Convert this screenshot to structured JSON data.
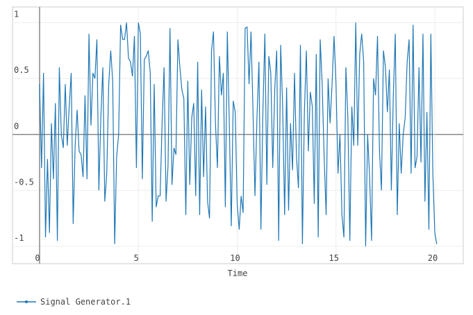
{
  "chart_data": {
    "type": "line",
    "xlabel": "Time",
    "x": [
      0,
      0.1,
      0.2,
      0.3,
      0.4,
      0.5,
      0.6,
      0.7,
      0.8,
      0.9,
      1,
      1.1,
      1.2,
      1.3,
      1.4,
      1.5,
      1.6,
      1.7,
      1.8,
      1.9,
      2,
      2.1,
      2.2,
      2.3,
      2.4,
      2.5,
      2.6,
      2.7,
      2.8,
      2.9,
      3,
      3.1,
      3.2,
      3.3,
      3.4,
      3.5,
      3.6,
      3.7,
      3.8,
      3.9,
      4,
      4.1,
      4.2,
      4.3,
      4.4,
      4.5,
      4.6,
      4.7,
      4.8,
      4.9,
      5,
      5.1,
      5.2,
      5.3,
      5.4,
      5.5,
      5.6,
      5.7,
      5.8,
      5.9,
      6,
      6.1,
      6.2,
      6.3,
      6.4,
      6.5,
      6.6,
      6.7,
      6.8,
      6.9,
      7,
      7.1,
      7.2,
      7.3,
      7.4,
      7.5,
      7.6,
      7.7,
      7.8,
      7.9,
      8,
      8.1,
      8.2,
      8.3,
      8.4,
      8.5,
      8.6,
      8.7,
      8.8,
      8.9,
      9,
      9.1,
      9.2,
      9.3,
      9.4,
      9.5,
      9.6,
      9.7,
      9.8,
      9.9,
      10,
      10.1,
      10.2,
      10.3,
      10.4,
      10.5,
      10.6,
      10.7,
      10.8,
      10.9,
      11,
      11.1,
      11.2,
      11.3,
      11.4,
      11.5,
      11.6,
      11.7,
      11.8,
      11.9,
      12,
      12.1,
      12.2,
      12.3,
      12.4,
      12.5,
      12.6,
      12.7,
      12.8,
      12.9,
      13,
      13.1,
      13.2,
      13.3,
      13.4,
      13.5,
      13.6,
      13.7,
      13.8,
      13.9,
      14,
      14.1,
      14.2,
      14.3,
      14.4,
      14.5,
      14.6,
      14.7,
      14.8,
      14.9,
      15,
      15.1,
      15.2,
      15.3,
      15.4,
      15.5,
      15.6,
      15.7,
      15.8,
      15.9,
      16,
      16.1,
      16.2,
      16.3,
      16.4,
      16.5,
      16.6,
      16.7,
      16.8,
      16.9,
      17,
      17.1,
      17.2,
      17.3,
      17.4,
      17.5,
      17.6,
      17.7,
      17.8,
      17.9,
      18,
      18.1,
      18.2,
      18.3,
      18.4,
      18.5,
      18.6,
      18.7,
      18.8,
      18.9,
      19,
      19.1,
      19.2,
      19.3,
      19.4,
      19.5,
      19.6,
      19.7,
      19.8,
      19.9,
      20,
      20.1
    ],
    "series": [
      {
        "name": "Signal Generator.1",
        "color": "#1f77b4",
        "values": [
          0.45,
          -0.3,
          0.55,
          -0.92,
          -0.22,
          -0.88,
          0.1,
          -0.4,
          0.28,
          -0.95,
          0.6,
          0.0,
          -0.12,
          0.45,
          -0.1,
          0.25,
          0.55,
          -0.8,
          -0.1,
          0.22,
          -0.15,
          -0.18,
          -0.38,
          0.35,
          -0.4,
          0.9,
          0.08,
          0.55,
          0.5,
          0.85,
          -0.5,
          0.15,
          0.6,
          -0.6,
          -0.35,
          0.45,
          0.75,
          0.48,
          -0.98,
          -0.2,
          0.0,
          0.98,
          0.85,
          0.85,
          1.0,
          0.68,
          0.65,
          0.52,
          0.88,
          -0.3,
          1.0,
          0.9,
          -0.4,
          0.67,
          0.7,
          0.75,
          0.55,
          -0.78,
          0.45,
          -0.65,
          -0.55,
          -0.55,
          0.1,
          0.6,
          -0.6,
          -0.28,
          0.95,
          -0.45,
          -0.12,
          -0.18,
          0.85,
          0.6,
          0.4,
          0.32,
          -0.72,
          0.48,
          -0.45,
          0.15,
          0.28,
          -0.55,
          0.65,
          -0.72,
          0.4,
          -0.38,
          0.25,
          -0.6,
          -0.75,
          0.75,
          0.92,
          0.1,
          -0.3,
          0.7,
          0.35,
          0.55,
          -0.65,
          0.92,
          0.1,
          -0.82,
          0.3,
          0.2,
          -0.62,
          -0.85,
          -0.55,
          -0.7,
          0.95,
          0.96,
          0.45,
          0.92,
          0.2,
          -0.55,
          0.15,
          0.65,
          -0.85,
          0.2,
          0.9,
          -0.45,
          0.7,
          0.55,
          -0.3,
          0.4,
          0.75,
          -0.95,
          0.8,
          0.25,
          -0.72,
          0.42,
          -0.68,
          0.1,
          -0.32,
          0.55,
          -0.2,
          -0.48,
          0.8,
          -0.98,
          0.2,
          0.75,
          -0.15,
          0.38,
          0.25,
          -0.62,
          0.72,
          -0.92,
          0.85,
          0.45,
          -0.2,
          -0.72,
          0.5,
          0.1,
          0.45,
          0.88,
          0.45,
          -0.35,
          0.0,
          -0.72,
          -0.92,
          0.6,
          0.15,
          -0.95,
          0.25,
          -0.1,
          1.0,
          -0.1,
          0.72,
          0.9,
          0.65,
          -1.0,
          0.0,
          -0.38,
          -0.95,
          0.5,
          0.35,
          0.88,
          -0.15,
          -0.5,
          0.75,
          0.6,
          0.2,
          0.58,
          -0.5,
          0.35,
          0.9,
          -0.72,
          0.1,
          -0.35,
          0.0,
          0.15,
          0.65,
          0.85,
          -0.35,
          0.98,
          -0.3,
          -0.2,
          0.6,
          -0.25,
          0.9,
          -0.6,
          0.2,
          -0.85,
          0.9,
          -0.35,
          -0.88,
          -0.98
        ]
      }
    ],
    "xlim": [
      -1.37,
      21.44
    ],
    "ylim": [
      -1.155,
      1.14
    ],
    "xticks": [
      0,
      5,
      10,
      15,
      20
    ],
    "yticks": [
      -1,
      -0.5,
      0,
      0.5,
      1
    ],
    "grid": true
  }
}
